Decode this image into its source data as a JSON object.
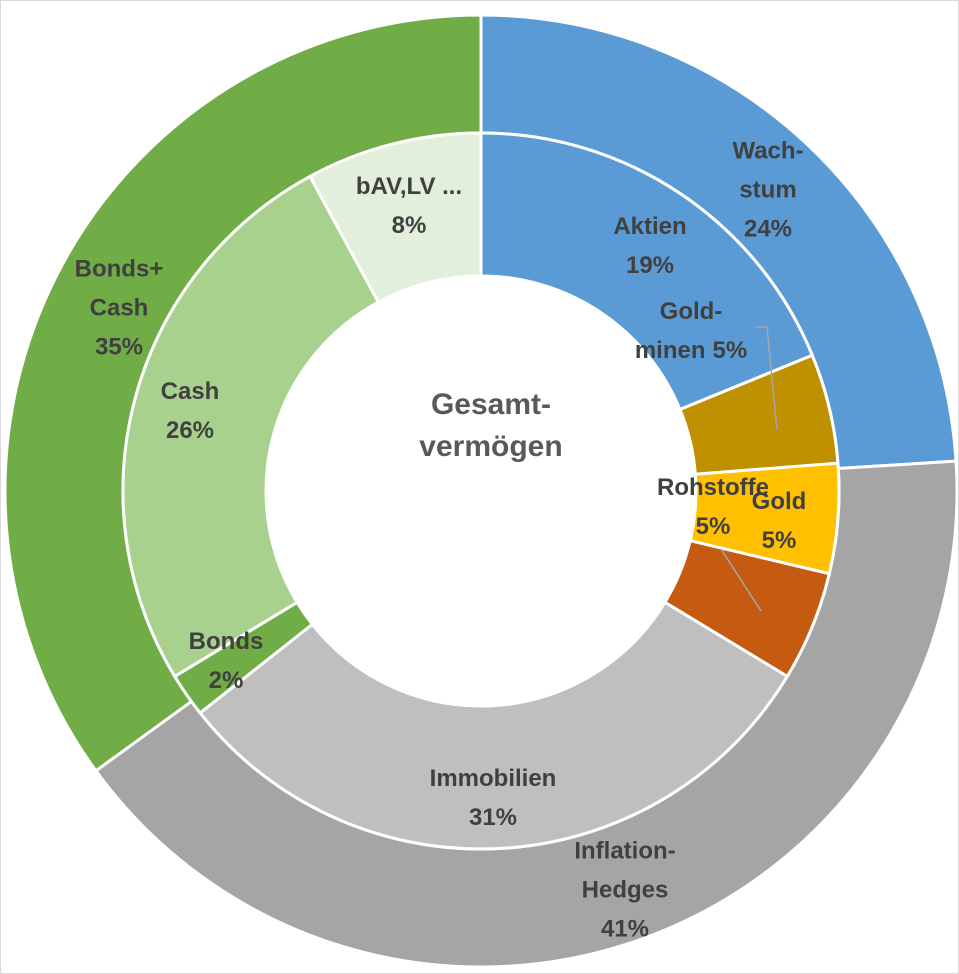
{
  "chart_data": {
    "type": "donut",
    "title": "Gesamt-\nvermögen",
    "rings": [
      {
        "categories": [
          "Wach-\nstum",
          "Inflation-\nHedges",
          "Bonds+\nCash"
        ],
        "values": [
          24,
          41,
          35
        ],
        "value_labels": [
          "24%",
          "41%",
          "35%"
        ],
        "colors": [
          "#5b9bd5",
          "#a5a5a5",
          "#70ad47"
        ]
      },
      {
        "categories": [
          "Aktien",
          "Gold-\nminen",
          "Gold",
          "Rohstoffe",
          "Immobilien",
          "Bonds",
          "Cash",
          "bAV,LV ..."
        ],
        "values": [
          19,
          5,
          5,
          5,
          31,
          2,
          26,
          8
        ],
        "value_labels": [
          "19%",
          "5%",
          "5%",
          "5%",
          "31%",
          "2%",
          "26%",
          "8%"
        ],
        "colors": [
          "#5b9bd5",
          "#bf9000",
          "#ffc000",
          "#c55a11",
          "#bfbfbf",
          "#70ad47",
          "#a9d18e",
          "#e2efda"
        ]
      }
    ]
  }
}
